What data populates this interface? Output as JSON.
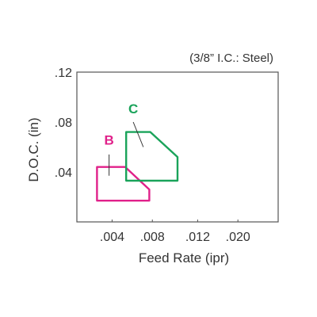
{
  "chart_data": {
    "type": "area",
    "title": "",
    "note": "(3/8” I.C.: Steel)",
    "xlabel": "Feed Rate (ipr)",
    "ylabel": "D.O.C. (in)",
    "xlim": [
      0,
      0.02
    ],
    "ylim": [
      0,
      0.12
    ],
    "x_ticks": [
      {
        "value": 0.004,
        "label": ".004"
      },
      {
        "value": 0.008,
        "label": ".008"
      },
      {
        "value": 0.012,
        "label": ".012"
      },
      {
        "value": 0.02,
        "label": ".020"
      }
    ],
    "x_tick_label_positions": [
      0.0035,
      0.0075,
      0.012,
      0.016
    ],
    "y_ticks": [
      {
        "value": 0.04,
        "label": ".04"
      },
      {
        "value": 0.08,
        "label": ".08"
      },
      {
        "value": 0.12,
        "label": ".12"
      }
    ],
    "grid": false,
    "legend": "none",
    "series": [
      {
        "name": "B",
        "color": "#e0218a",
        "outline": [
          [
            0.002,
            0.044
          ],
          [
            0.0048,
            0.044
          ],
          [
            0.0072,
            0.026
          ],
          [
            0.0072,
            0.017
          ],
          [
            0.002,
            0.017
          ]
        ],
        "label_at": [
          0.0032,
          0.062
        ],
        "leader": [
          [
            0.0032,
            0.054
          ],
          [
            0.0032,
            0.037
          ]
        ]
      },
      {
        "name": "C",
        "color": "#1aa35a",
        "outline": [
          [
            0.0049,
            0.072
          ],
          [
            0.0073,
            0.072
          ],
          [
            0.01,
            0.052
          ],
          [
            0.01,
            0.033
          ],
          [
            0.0049,
            0.033
          ]
        ],
        "label_at": [
          0.0056,
          0.087
        ],
        "leader": [
          [
            0.0056,
            0.08
          ],
          [
            0.0066,
            0.06
          ]
        ]
      }
    ]
  }
}
